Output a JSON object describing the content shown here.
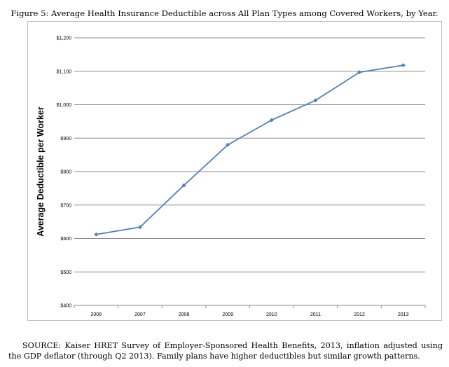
{
  "figure": {
    "caption": "Figure 5: Average Health Insurance Deductible across All Plan Types among Covered Workers, by Year.",
    "source": "SOURCE: Kaiser HRET Survey of Employer-Sponsored Health Benefits, 2013, inflation adjusted using the GDP deflator (through Q2 2013). Family plans have higher deductibles but similar growth patterns."
  },
  "chart_data": {
    "type": "line",
    "title": "",
    "xlabel": "",
    "ylabel": "Average Deductible per Worker",
    "categories": [
      "2006",
      "2007",
      "2008",
      "2009",
      "2010",
      "2011",
      "2012",
      "2013"
    ],
    "series": [
      {
        "values": [
          612,
          634,
          759,
          880,
          954,
          1013,
          1097,
          1118
        ]
      }
    ],
    "yticks": [
      "$400",
      "$500",
      "$600",
      "$700",
      "$800",
      "$900",
      "$1,000",
      "$1,100",
      "$1,200"
    ],
    "ylim": [
      400,
      1200
    ],
    "grid": true,
    "legend": "none",
    "line_color": "#4f81bd",
    "grid_color": "#8c8c8c"
  }
}
